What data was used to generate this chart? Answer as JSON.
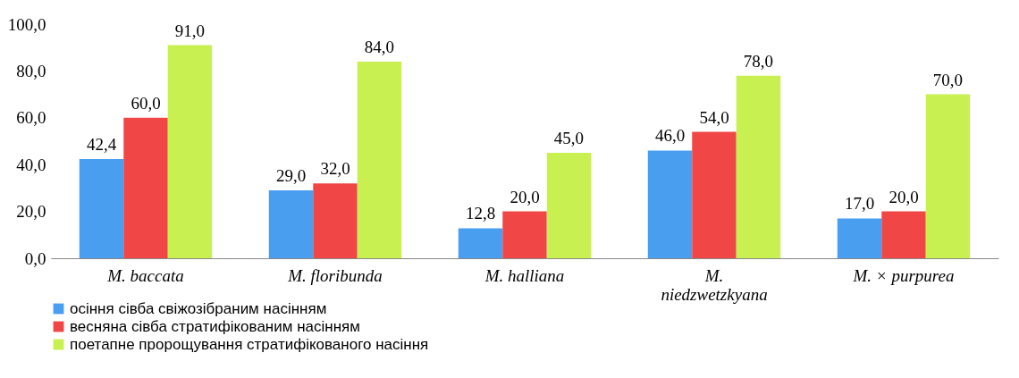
{
  "chart_data": {
    "type": "bar",
    "categories": [
      "M. baccata",
      "M. floribunda",
      "M. halliana",
      "M. niedzwetzkyana",
      "M. × purpurea"
    ],
    "series": [
      {
        "name": "осіння сівба свіжозібраним насінням",
        "color": "#4a9ef0",
        "values": [
          42.4,
          29.0,
          12.8,
          46.0,
          17.0
        ],
        "value_labels": [
          "42,4",
          "29,0",
          "12,8",
          "46,0",
          "17,0"
        ]
      },
      {
        "name": "весняна сівба стратифікованим насінням",
        "color": "#f04646",
        "values": [
          60.0,
          32.0,
          20.0,
          54.0,
          20.0
        ],
        "value_labels": [
          "60,0",
          "32,0",
          "20,0",
          "54,0",
          "20,0"
        ]
      },
      {
        "name": "поетапне пророщування стратифікованого насіння",
        "color": "#c8f050",
        "values": [
          91.0,
          84.0,
          45.0,
          78.0,
          70.0
        ],
        "value_labels": [
          "91,0",
          "84,0",
          "45,0",
          "78,0",
          "70,0"
        ]
      }
    ],
    "ylim": [
      0,
      100
    ],
    "yticks": [
      {
        "value": 0,
        "label": "0,0"
      },
      {
        "value": 20,
        "label": "20,0"
      },
      {
        "value": 40,
        "label": "40,0"
      },
      {
        "value": 60,
        "label": "60,0"
      },
      {
        "value": 80,
        "label": "80,0"
      },
      {
        "value": 100,
        "label": "100,0"
      }
    ],
    "legend": "bottom",
    "grid": false
  }
}
